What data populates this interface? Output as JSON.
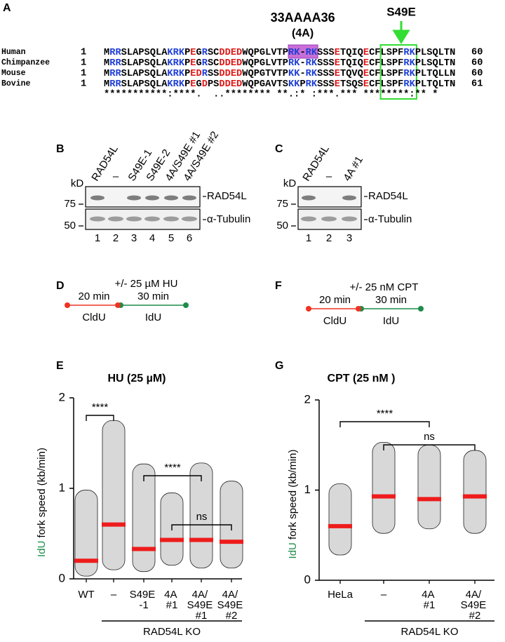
{
  "panel_labels": [
    "A",
    "B",
    "C",
    "D",
    "E",
    "F",
    "G"
  ],
  "alignment": {
    "annotation_4a": "33AAAA36",
    "annotation_4a_short": "(4A)",
    "annotation_s49e": "S49E",
    "rows": [
      {
        "name": "Human",
        "start": "1",
        "sequence": "MRRSLAPSQLAKRKPEGRSCDDEDWQPGLVTPRK-RKSSSETQIQECFLSPFRKPLSQLTN",
        "end": "60"
      },
      {
        "name": "Chimpanzee",
        "start": "1",
        "sequence": "MRRSLAPSQLAKRKPEGRSCDDEDWQPGLVTPRK-RKSSSETQIQECFLSPFRKPLSQLTN",
        "end": "60"
      },
      {
        "name": "Mouse",
        "start": "1",
        "sequence": "MRRSLAPSQLAKRKPEDRSSDDEDWQPGTVTPKK-RKSSSETQVQECFLSPFRKPLTQLLN",
        "end": "60"
      },
      {
        "name": "Bovine",
        "start": "1",
        "sequence": "MRRSLAPSQLAKRKPEGDPSDDEDWQPGAVTSKKPRKSSSETSQSECFLSPFRKPLTQLTN",
        "end": "61"
      }
    ],
    "consensus": "***********:****.  ..******** **.:* :***.*** ********:** *"
  },
  "blot_b": {
    "kd": "kD",
    "lanes": [
      "RAD54L",
      "–",
      "S49E-1",
      "S49E-2",
      "4A/S49E #1",
      "4A/S49E #2"
    ],
    "lane_numbers": [
      "1",
      "2",
      "3",
      "4",
      "5",
      "6"
    ],
    "markers": [
      "75",
      "50"
    ],
    "proteins": [
      "RAD54L",
      "α-Tubulin"
    ]
  },
  "blot_c": {
    "kd": "kD",
    "lanes": [
      "RAD54L",
      "–",
      "4A #1"
    ],
    "lane_numbers": [
      "1",
      "2",
      "3"
    ],
    "markers": [
      "75",
      "50"
    ],
    "proteins": [
      "RAD54L",
      "α-Tubulin"
    ]
  },
  "timeline_d": {
    "treatment": "+/- 25 µM HU",
    "first_time": "20 min",
    "second_time": "30 min",
    "first_label": "CldU",
    "second_label": "IdU"
  },
  "timeline_f": {
    "treatment": "+/- 25 nM CPT",
    "first_time": "20 min",
    "second_time": "30 min",
    "first_label": "CldU",
    "second_label": "IdU"
  },
  "chart_data": [
    {
      "type": "dotplot",
      "title": "HU (25 µM)",
      "ylabel": "IdU fork speed (kb/min)",
      "categories": [
        "WT",
        "–",
        "S49E -1",
        "4A #1",
        "4A/ S49E #1",
        "4A/ S49E #2"
      ],
      "values": [
        0.2,
        0.6,
        0.33,
        0.43,
        0.43,
        0.41
      ],
      "min": [
        0.03,
        0.1,
        0.08,
        0.15,
        0.12,
        0.12
      ],
      "max": [
        0.98,
        1.75,
        1.27,
        0.95,
        1.28,
        1.08
      ],
      "color": "#ee1c1c",
      "ylim": [
        0,
        2
      ],
      "yticks": [
        0,
        1,
        2
      ],
      "annotations": [
        "****",
        "****",
        "ns"
      ],
      "group_label": "RAD54L KO"
    },
    {
      "type": "dotplot",
      "title": "CPT (25 nM )",
      "ylabel": "IdU fork speed (kb/min)",
      "categories": [
        "HeLa",
        "–",
        "4A #1",
        "4A/ S49E #2"
      ],
      "values": [
        0.6,
        0.93,
        0.9,
        0.93
      ],
      "min": [
        0.28,
        0.52,
        0.57,
        0.52
      ],
      "max": [
        1.07,
        1.53,
        1.5,
        1.44
      ],
      "color": "#ee1c1c",
      "ylim": [
        0,
        2
      ],
      "yticks": [
        0,
        1,
        2
      ],
      "annotations": [
        "****",
        "ns"
      ],
      "group_label": "RAD54L KO"
    }
  ]
}
